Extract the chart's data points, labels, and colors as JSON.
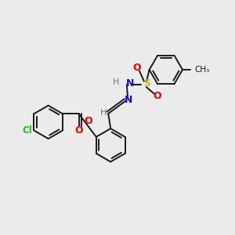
{
  "bg_color": "#ebebeb",
  "bond_color": "#1a1a1a",
  "text_colors": {
    "Cl": "#22bb22",
    "O": "#ee0000",
    "N": "#1111cc",
    "S": "#ccbb00",
    "H": "#4d7f7f",
    "C": "#1a1a1a",
    "CH3": "#1a1a1a"
  },
  "lw": 1.4,
  "r": 0.72
}
